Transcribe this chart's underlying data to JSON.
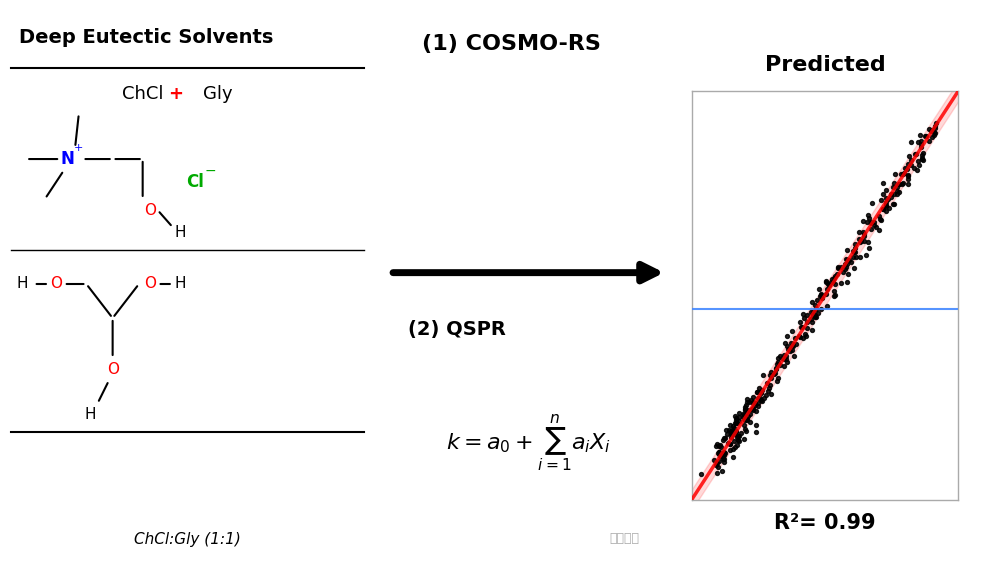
{
  "bg_color": "#ffffff",
  "title_text": "Deep Eutectic Solvents",
  "chcl_gly_text": "ChCl + Gly",
  "chcl_gly_label": "ChCl:Gly (1:1)",
  "cosmo_rs_label": "(1) COSMO-RS",
  "qspr_label": "(2) QSPR",
  "predicted_label": "Predicted",
  "r2_label": "R²= 0.99",
  "watermark": "泰科科技",
  "plot_bg": "#ffffff",
  "scatter_color": "#000000",
  "line_color": "#ff0000",
  "hline_color": "#4488ff",
  "scatter_alpha": 0.85,
  "n_points": 280,
  "seed": 42
}
